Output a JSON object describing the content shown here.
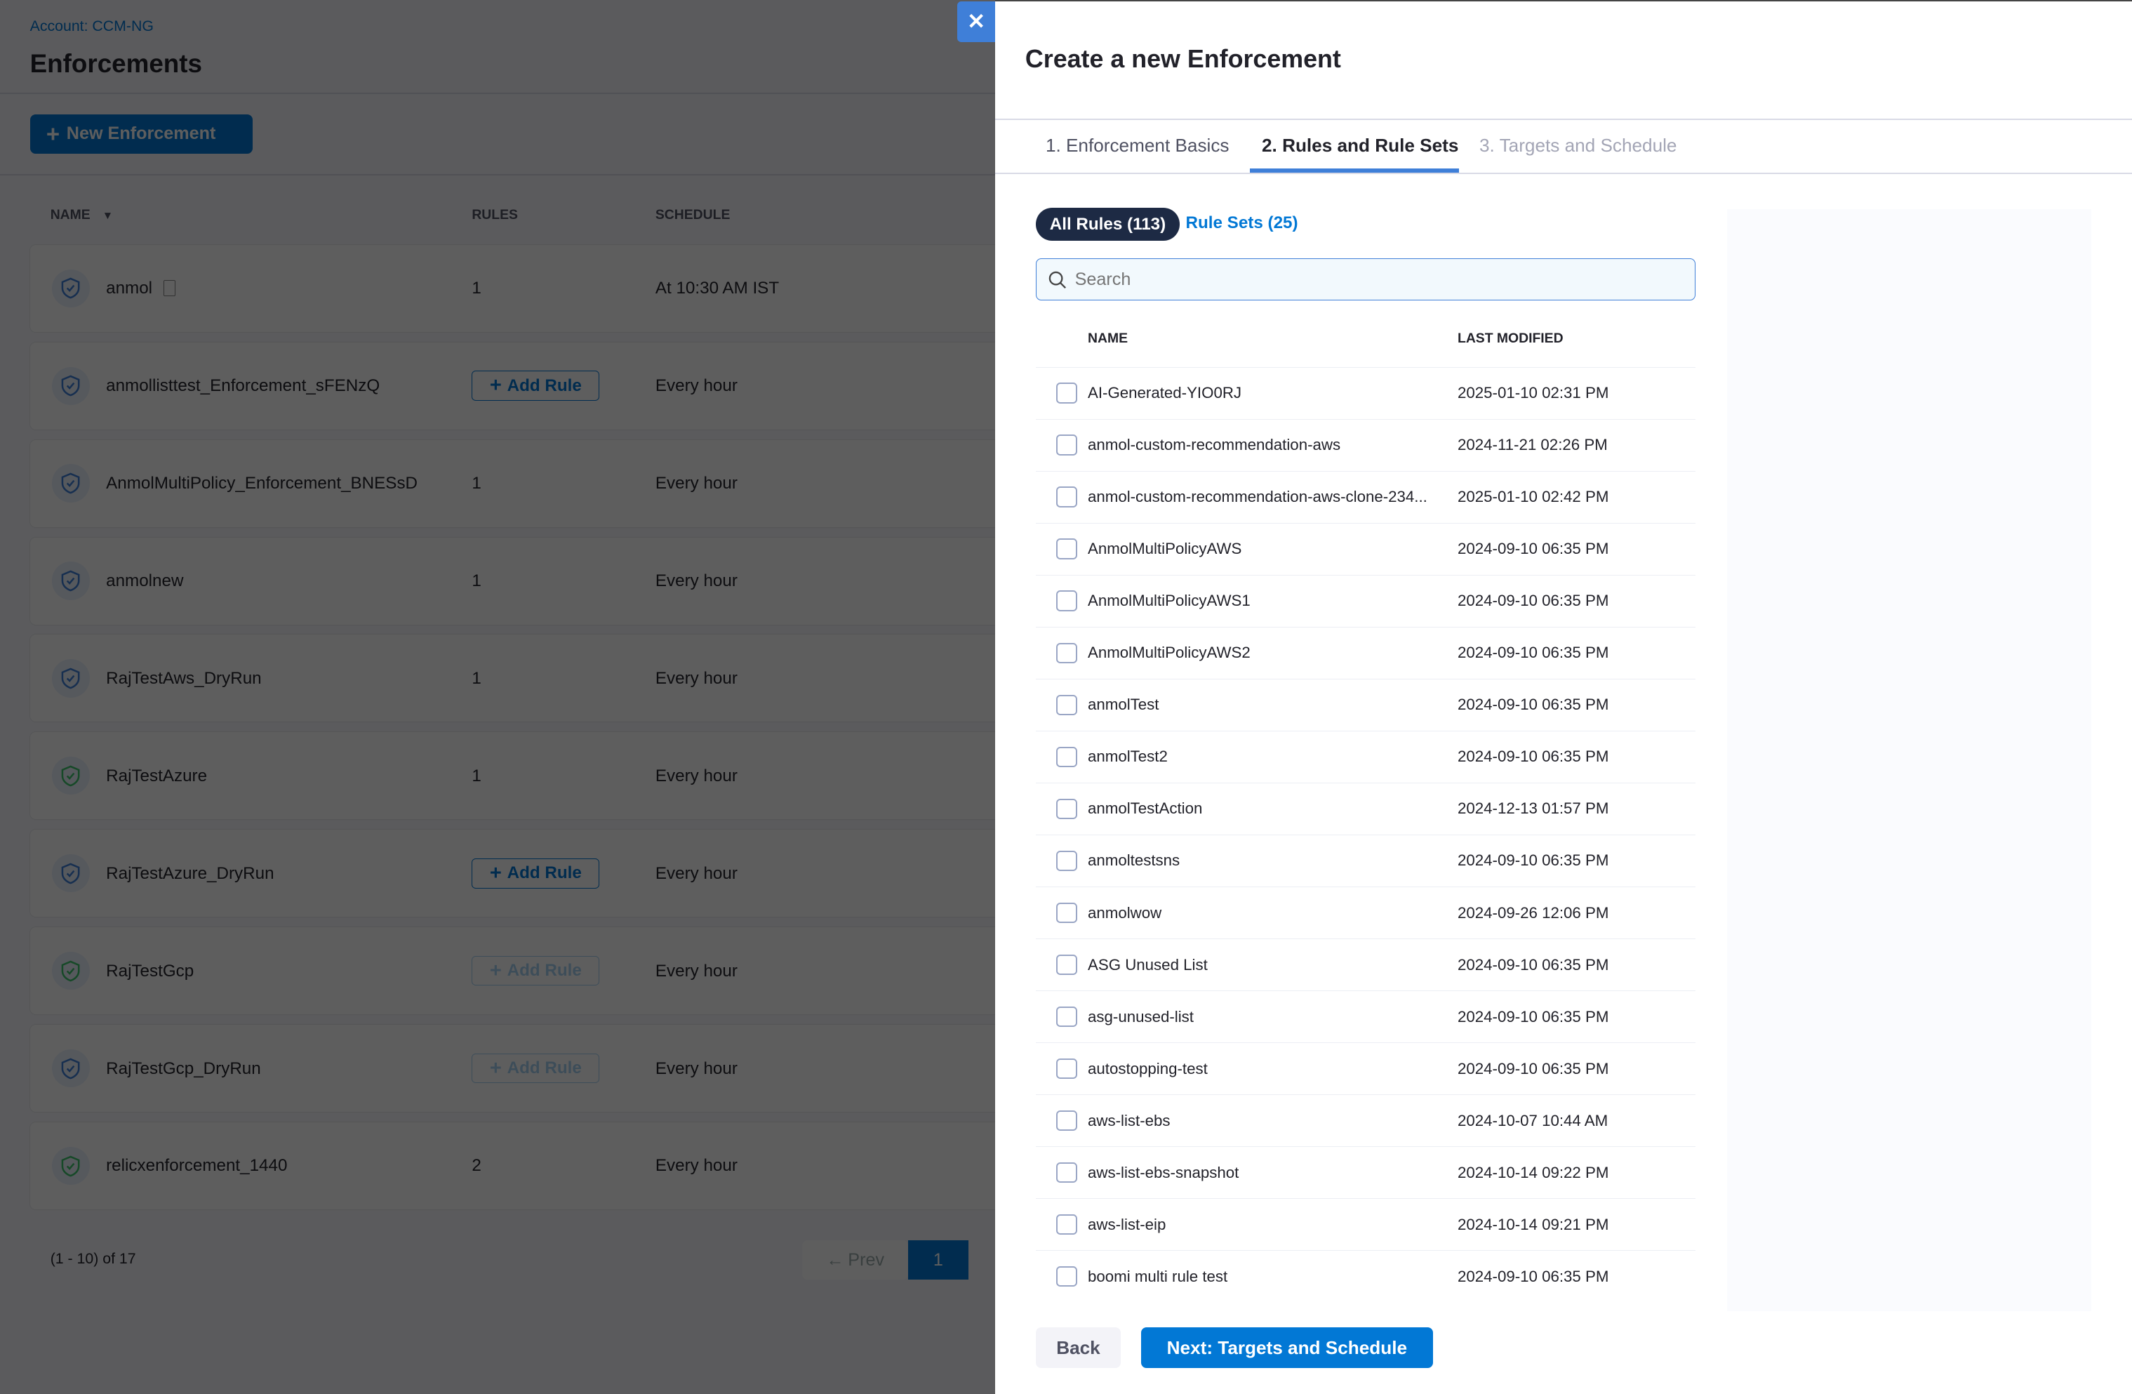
{
  "page": {
    "account": "Account: CCM-NG",
    "title": "Enforcements",
    "new_button": "New Enforcement",
    "columns": {
      "name": "NAME",
      "rules": "RULES",
      "schedule": "SCHEDULE"
    },
    "rows": [
      {
        "name": "anmol",
        "rules": "1",
        "schedule": "At 10:30 AM IST",
        "status": "blue",
        "doc": true
      },
      {
        "name": "anmollisttest_Enforcement_sFENzQ",
        "rules": "",
        "add_rule": "Add Rule",
        "add_rule_state": "enabled",
        "schedule": "Every hour",
        "status": "blue"
      },
      {
        "name": "AnmolMultiPolicy_Enforcement_BNESsD",
        "rules": "1",
        "schedule": "Every hour",
        "status": "blue"
      },
      {
        "name": "anmolnew",
        "rules": "1",
        "schedule": "Every hour",
        "status": "blue"
      },
      {
        "name": "RajTestAws_DryRun",
        "rules": "1",
        "schedule": "Every hour",
        "status": "blue"
      },
      {
        "name": "RajTestAzure",
        "rules": "1",
        "schedule": "Every hour",
        "status": "green"
      },
      {
        "name": "RajTestAzure_DryRun",
        "rules": "",
        "add_rule": "Add Rule",
        "add_rule_state": "enabled",
        "schedule": "Every hour",
        "status": "blue"
      },
      {
        "name": "RajTestGcp",
        "rules": "",
        "add_rule": "Add Rule",
        "add_rule_state": "disabled",
        "schedule": "Every hour",
        "status": "green"
      },
      {
        "name": "RajTestGcp_DryRun",
        "rules": "",
        "add_rule": "Add Rule",
        "add_rule_state": "disabled",
        "schedule": "Every hour",
        "status": "blue"
      },
      {
        "name": "relicxenforcement_1440",
        "rules": "2",
        "schedule": "Every hour",
        "status": "green"
      }
    ],
    "pagination": {
      "range": "(1 - 10) of 17",
      "prev": "Prev",
      "current": "1"
    }
  },
  "drawer": {
    "close": "✕",
    "title": "Create a new Enforcement",
    "steps": [
      {
        "label": "1. Enforcement Basics",
        "state": "done"
      },
      {
        "label": "2. Rules and Rule Sets",
        "state": "active"
      },
      {
        "label": "3. Targets and Schedule",
        "state": "pending"
      }
    ],
    "all_rules": "All Rules (113)",
    "rule_sets": "Rule Sets (25)",
    "search_placeholder": "Search",
    "columns": {
      "name": "NAME",
      "last_modified": "LAST MODIFIED"
    },
    "rules": [
      {
        "name": "AI-Generated-YIO0RJ",
        "modified": "2025-01-10 02:31 PM"
      },
      {
        "name": "anmol-custom-recommendation-aws",
        "modified": "2024-11-21 02:26 PM"
      },
      {
        "name": "anmol-custom-recommendation-aws-clone-234...",
        "modified": "2025-01-10 02:42 PM"
      },
      {
        "name": "AnmolMultiPolicyAWS",
        "modified": "2024-09-10 06:35 PM"
      },
      {
        "name": "AnmolMultiPolicyAWS1",
        "modified": "2024-09-10 06:35 PM"
      },
      {
        "name": "AnmolMultiPolicyAWS2",
        "modified": "2024-09-10 06:35 PM"
      },
      {
        "name": "anmolTest",
        "modified": "2024-09-10 06:35 PM"
      },
      {
        "name": "anmolTest2",
        "modified": "2024-09-10 06:35 PM"
      },
      {
        "name": "anmolTestAction",
        "modified": "2024-12-13 01:57 PM"
      },
      {
        "name": "anmoltestsns",
        "modified": "2024-09-10 06:35 PM"
      },
      {
        "name": "anmolwow",
        "modified": "2024-09-26 12:06 PM"
      },
      {
        "name": "ASG Unused List",
        "modified": "2024-09-10 06:35 PM"
      },
      {
        "name": "asg-unused-list",
        "modified": "2024-09-10 06:35 PM"
      },
      {
        "name": "autostopping-test",
        "modified": "2024-09-10 06:35 PM"
      },
      {
        "name": "aws-list-ebs",
        "modified": "2024-10-07 10:44 AM"
      },
      {
        "name": "aws-list-ebs-snapshot",
        "modified": "2024-10-14 09:22 PM"
      },
      {
        "name": "aws-list-eip",
        "modified": "2024-10-14 09:21 PM"
      },
      {
        "name": "boomi multi rule test",
        "modified": "2024-09-10 06:35 PM"
      }
    ],
    "back": "Back",
    "next": "Next: Targets and Schedule"
  },
  "colors": {
    "primary": "#0278d5",
    "pill": "#1d2a44",
    "tab_indicator": "#3f7fd8",
    "status_green": "#3dc46d",
    "status_blue": "#3f7fd8"
  }
}
